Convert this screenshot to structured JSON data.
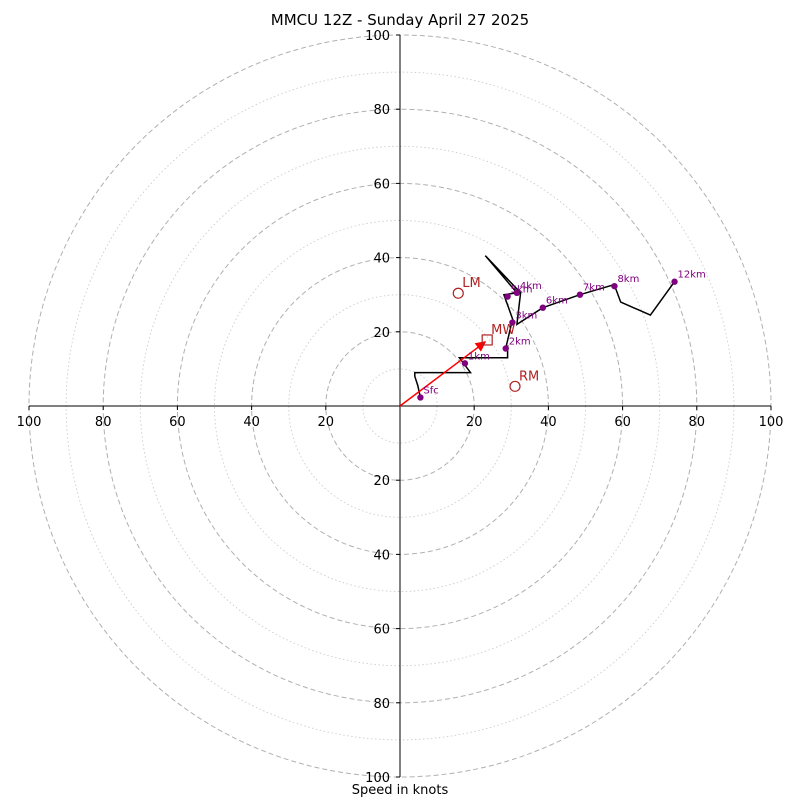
{
  "chart_data": {
    "type": "hodograph",
    "title": "MMCU 12Z - Sunday April 27 2025",
    "xlabel": "Speed in knots",
    "ring_max": 100,
    "ring_major_step": 20,
    "ring_minor_step": 10,
    "tick_labels": [
      "100",
      "80",
      "60",
      "40",
      "20",
      "20",
      "40",
      "60",
      "80",
      "100"
    ],
    "tick_values": [
      -100,
      -80,
      -60,
      -40,
      -20,
      20,
      40,
      60,
      80,
      100
    ],
    "trace": [
      [
        5.5,
        2.3
      ],
      [
        4.8,
        5.5
      ],
      [
        4,
        8
      ],
      [
        4,
        9
      ],
      [
        18,
        9
      ],
      [
        19,
        9
      ],
      [
        16,
        13
      ],
      [
        29,
        13
      ],
      [
        29,
        16
      ],
      [
        28.5,
        15.5
      ],
      [
        30,
        22
      ],
      [
        30.5,
        23
      ],
      [
        28,
        30
      ],
      [
        31.5,
        30.5
      ],
      [
        23,
        40.5
      ],
      [
        32.5,
        30.5
      ],
      [
        31.5,
        22
      ],
      [
        38.5,
        26.5
      ],
      [
        48.5,
        30
      ],
      [
        57,
        32.5
      ],
      [
        58,
        32
      ],
      [
        59.5,
        28
      ],
      [
        67.5,
        24.5
      ],
      [
        74,
        33.5
      ]
    ],
    "height_points": [
      {
        "label": "Sfc",
        "u": 5.5,
        "v": 2.3
      },
      {
        "label": "1km",
        "u": 17.5,
        "v": 11.5
      },
      {
        "label": "2km",
        "u": 28.5,
        "v": 15.5
      },
      {
        "label": "3km",
        "u": 30.3,
        "v": 22.5
      },
      {
        "label": "4km",
        "u": 31.5,
        "v": 30.5
      },
      {
        "label": "5km",
        "u": 29,
        "v": 29.5
      },
      {
        "label": "6km",
        "u": 38.5,
        "v": 26.5
      },
      {
        "label": "7km",
        "u": 48.5,
        "v": 30
      },
      {
        "label": "8km",
        "u": 57.8,
        "v": 32.3
      },
      {
        "label": "12km",
        "u": 74,
        "v": 33.5
      }
    ],
    "motion_markers": [
      {
        "label": "LM",
        "u": 15.7,
        "v": 30.4,
        "shape": "circle"
      },
      {
        "label": "MW",
        "u": 23.5,
        "v": 17.8,
        "shape": "square"
      },
      {
        "label": "RM",
        "u": 31,
        "v": 5.3,
        "shape": "circle"
      }
    ],
    "arrow": {
      "from": [
        0,
        0
      ],
      "to": [
        23,
        17.3
      ]
    },
    "colors": {
      "trace": "#000000",
      "height_points": "#800080",
      "motion": "#b22222",
      "arrow": "#ff0000",
      "rings": "#aaaaaa"
    }
  }
}
